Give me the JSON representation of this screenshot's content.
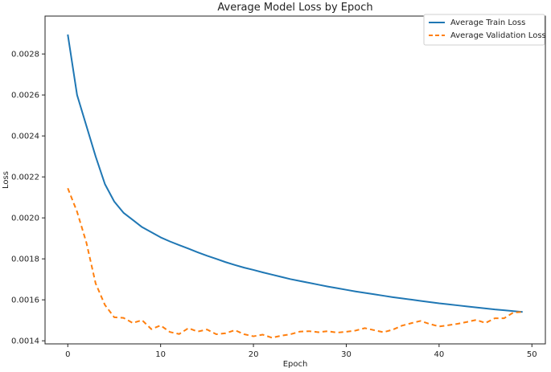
{
  "chart_data": {
    "type": "line",
    "title": "Average Model Loss by Epoch",
    "xlabel": "Epoch",
    "ylabel": "Loss",
    "xlim": [
      -2.45,
      51.45
    ],
    "ylim": [
      0.001385,
      0.002985
    ],
    "x_ticks": [
      0,
      10,
      20,
      30,
      40,
      50
    ],
    "y_ticks": [
      0.0014,
      0.0016,
      0.0018,
      0.002,
      0.0022,
      0.0024,
      0.0026,
      0.0028
    ],
    "x_tick_labels": [
      "0",
      "10",
      "20",
      "30",
      "40",
      "50"
    ],
    "y_tick_labels": [
      "0.0014",
      "0.0016",
      "0.0018",
      "0.0020",
      "0.0022",
      "0.0024",
      "0.0026",
      "0.0028"
    ],
    "grid": false,
    "legend_position": "top-right",
    "x": [
      0,
      1,
      2,
      3,
      4,
      5,
      6,
      7,
      8,
      9,
      10,
      11,
      12,
      13,
      14,
      15,
      16,
      17,
      18,
      19,
      20,
      21,
      22,
      23,
      24,
      25,
      26,
      27,
      28,
      29,
      30,
      31,
      32,
      33,
      34,
      35,
      36,
      37,
      38,
      39,
      40,
      41,
      42,
      43,
      44,
      45,
      46,
      47,
      48,
      49
    ],
    "series": [
      {
        "name": "Average Train Loss",
        "color": "#1f77b4",
        "style": "solid",
        "values": [
          0.002895,
          0.0026,
          0.00245,
          0.0023,
          0.002165,
          0.00208,
          0.002025,
          0.00199,
          0.001955,
          0.00193,
          0.001905,
          0.001885,
          0.001867,
          0.00185,
          0.001832,
          0.001815,
          0.0018,
          0.001784,
          0.00177,
          0.001757,
          0.001746,
          0.001734,
          0.001723,
          0.001712,
          0.001701,
          0.001692,
          0.001683,
          0.001674,
          0.001665,
          0.001657,
          0.001649,
          0.001641,
          0.001634,
          0.001627,
          0.00162,
          0.001613,
          0.001607,
          0.001601,
          0.001595,
          0.001589,
          0.001583,
          0.001578,
          0.001573,
          0.001568,
          0.001563,
          0.001558,
          0.001553,
          0.001549,
          0.001545,
          0.001541
        ]
      },
      {
        "name": "Average Validation Loss",
        "color": "#ff7f0e",
        "style": "dashed",
        "values": [
          0.002145,
          0.00203,
          0.00188,
          0.00168,
          0.001575,
          0.001515,
          0.001512,
          0.001487,
          0.001501,
          0.001457,
          0.001475,
          0.001443,
          0.001433,
          0.001462,
          0.001445,
          0.001455,
          0.001432,
          0.001437,
          0.001452,
          0.001432,
          0.001422,
          0.00143,
          0.001415,
          0.001425,
          0.001432,
          0.001445,
          0.001447,
          0.001442,
          0.001447,
          0.00144,
          0.001444,
          0.00145,
          0.001462,
          0.001452,
          0.001442,
          0.001454,
          0.001474,
          0.001486,
          0.001497,
          0.001482,
          0.00147,
          0.001476,
          0.001483,
          0.001492,
          0.001502,
          0.001487,
          0.00151,
          0.00151,
          0.001538,
          0.001541
        ]
      }
    ]
  }
}
